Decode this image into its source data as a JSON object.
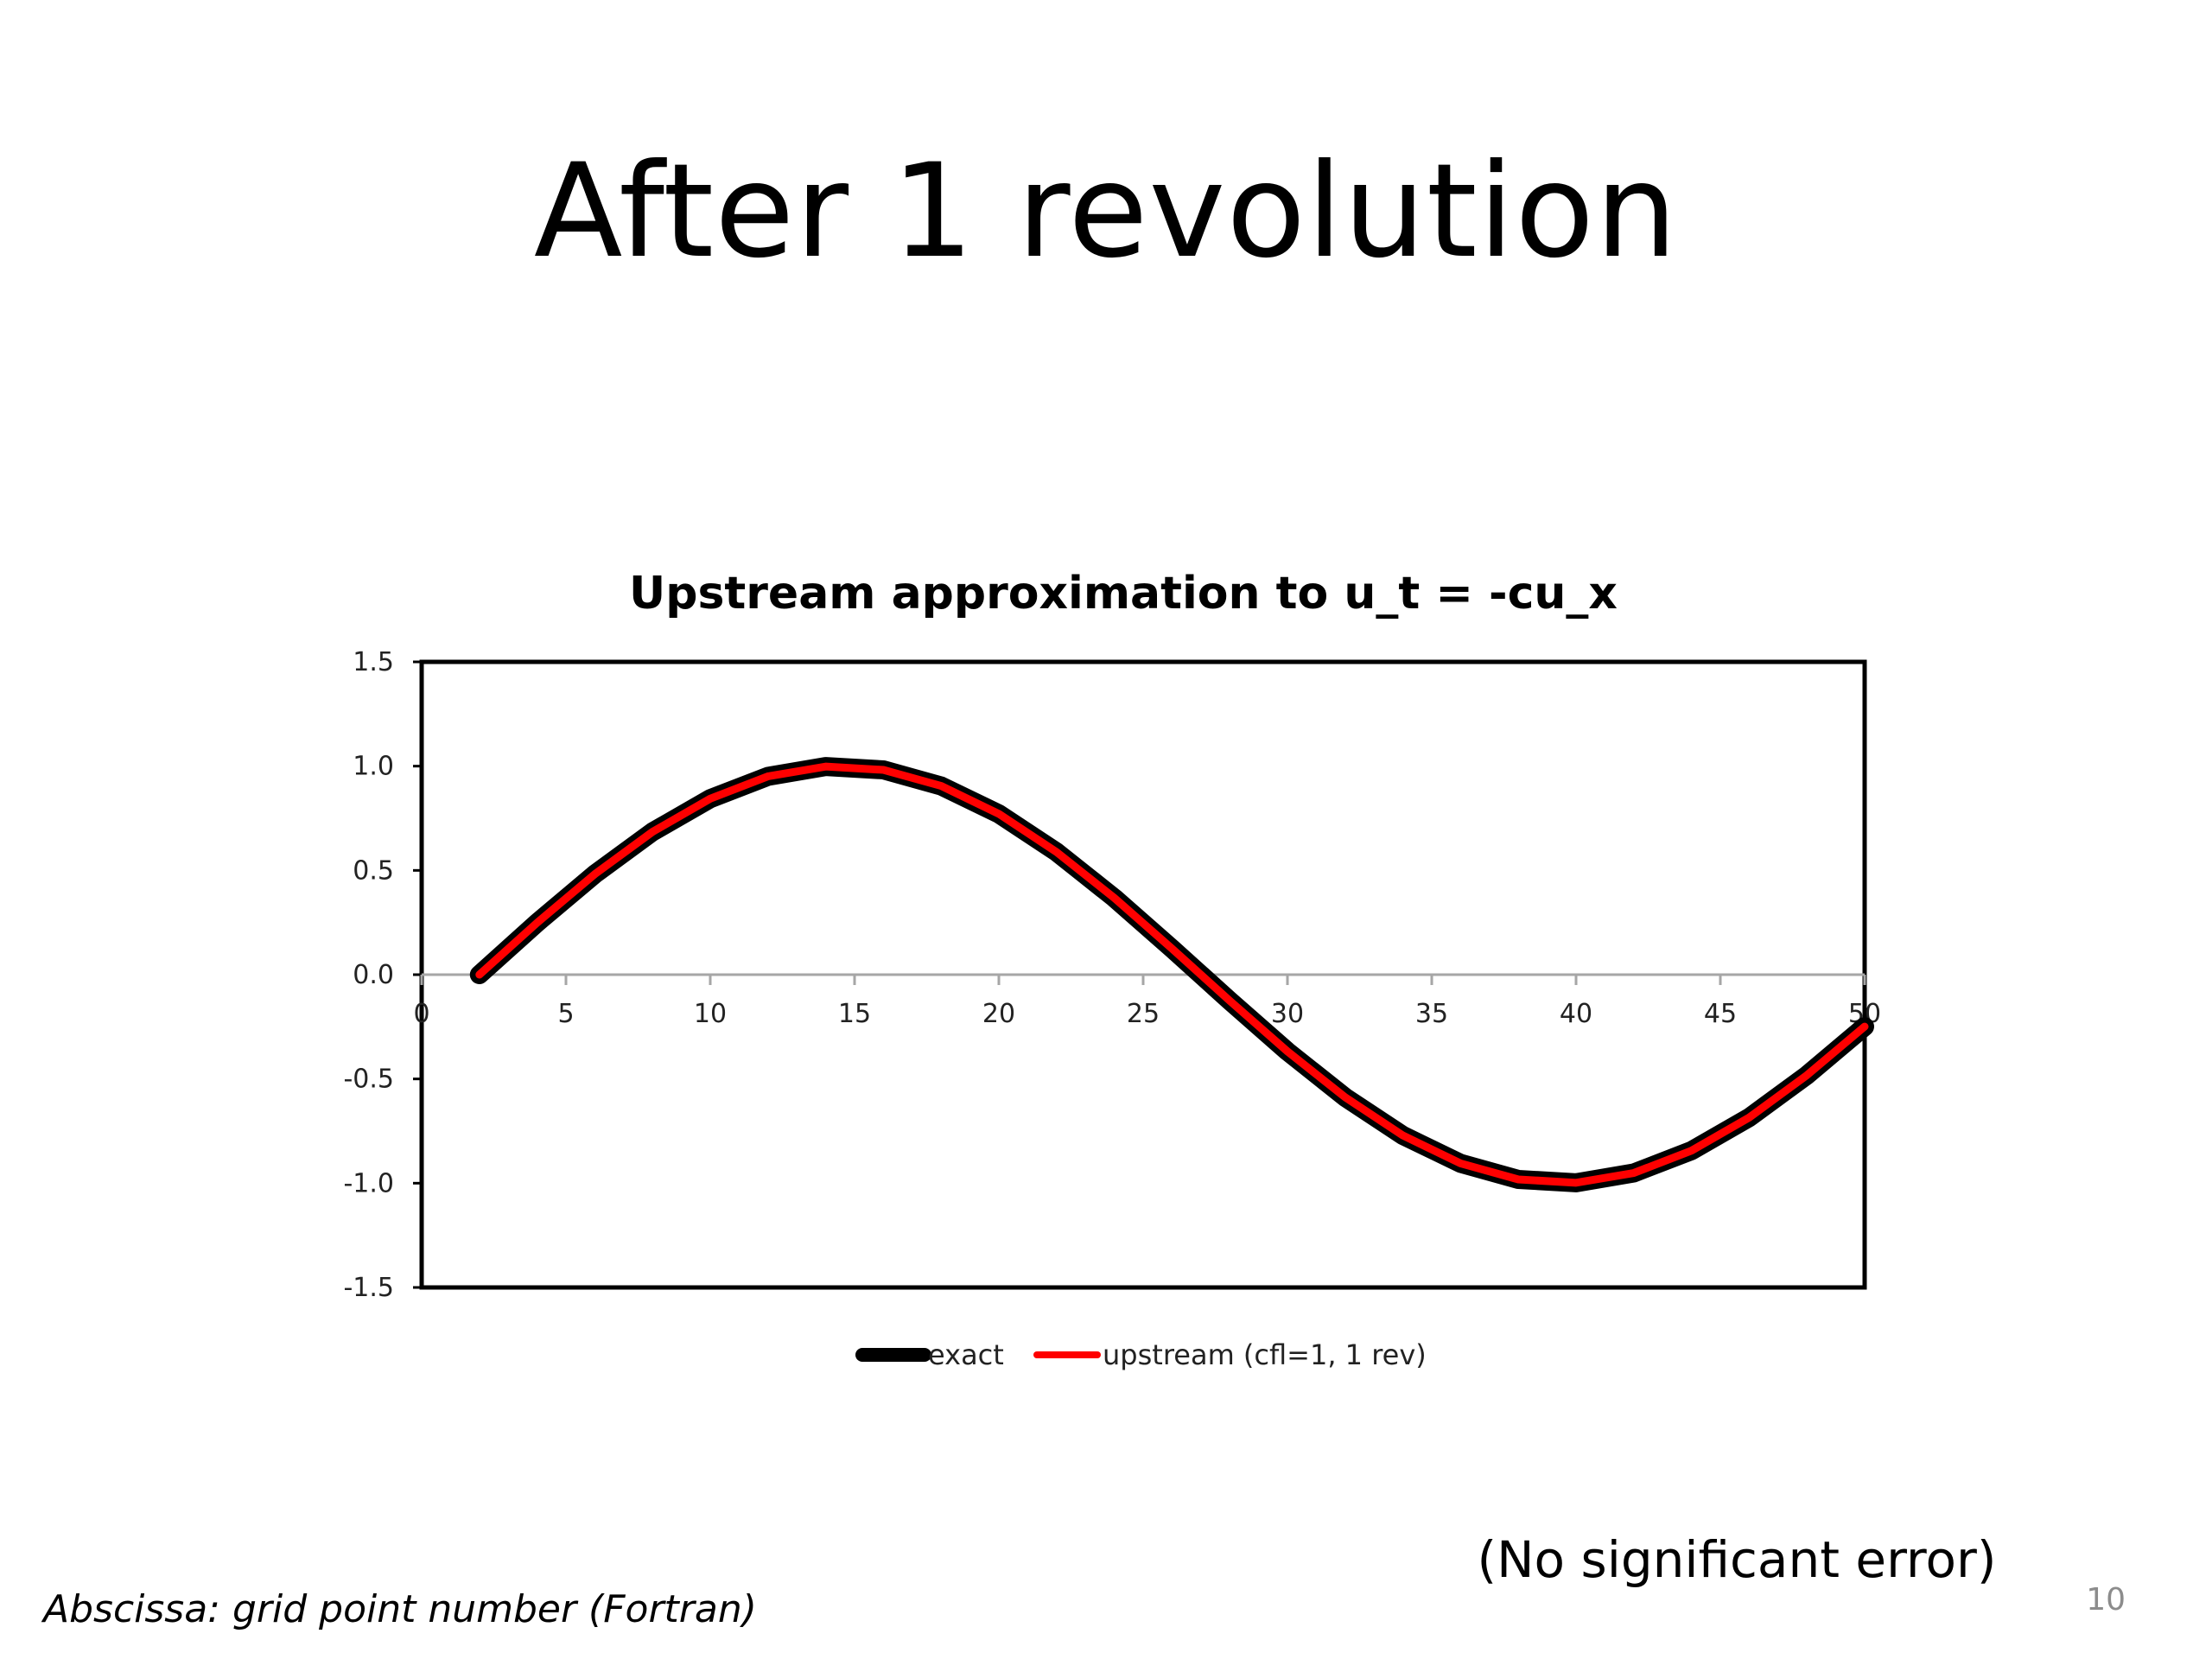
{
  "slide": {
    "title": "After 1 revolution",
    "remark": "(No significant error)",
    "footnote": "Abscissa: grid point number (Fortran)",
    "page_number": "10"
  },
  "colors": {
    "exact": "#000000",
    "upstream": "#ff0000",
    "axis": "#000000",
    "zero_line": "#a6a6a6"
  },
  "chart_data": {
    "type": "line",
    "title": "Upstream approximation to u_t = -cu_x",
    "xlabel": "",
    "ylabel": "",
    "xlim": [
      0,
      50
    ],
    "ylim": [
      -1.5,
      1.5
    ],
    "x_ticks": [
      "0",
      "5",
      "10",
      "15",
      "20",
      "25",
      "30",
      "35",
      "40",
      "45",
      "50"
    ],
    "y_ticks": [
      "1.5",
      "1.0",
      "0.5",
      "0.0",
      "-0.5",
      "-1.0",
      "-1.5"
    ],
    "grid": false,
    "legend_position": "bottom",
    "x": [
      2,
      4,
      6,
      8,
      10,
      12,
      14,
      16,
      18,
      20,
      22,
      24,
      26,
      28,
      30,
      32,
      34,
      36,
      38,
      40,
      42,
      44,
      46,
      48,
      50
    ],
    "series": [
      {
        "name": "exact",
        "color": "#000000",
        "values": [
          0.0,
          0.249,
          0.482,
          0.685,
          0.844,
          0.951,
          0.998,
          0.982,
          0.905,
          0.771,
          0.588,
          0.368,
          0.125,
          -0.125,
          -0.368,
          -0.588,
          -0.771,
          -0.905,
          -0.982,
          -0.998,
          -0.951,
          -0.844,
          -0.685,
          -0.482,
          -0.249
        ]
      },
      {
        "name": "upstream (cfl=1, 1 rev)",
        "color": "#ff0000",
        "values": [
          0.0,
          0.249,
          0.482,
          0.685,
          0.844,
          0.951,
          0.998,
          0.982,
          0.905,
          0.771,
          0.588,
          0.368,
          0.125,
          -0.125,
          -0.368,
          -0.588,
          -0.771,
          -0.905,
          -0.982,
          -0.998,
          -0.951,
          -0.844,
          -0.685,
          -0.482,
          -0.249
        ]
      }
    ]
  }
}
